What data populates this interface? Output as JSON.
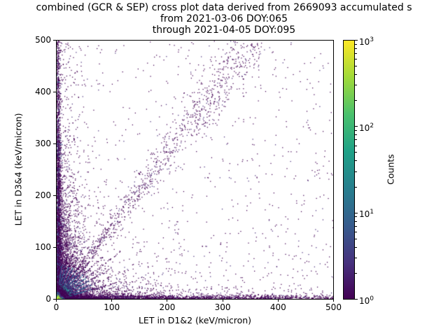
{
  "chart_data": {
    "type": "scatter",
    "title_lines": [
      "combined (GCR & SEP) cross plot data derived from 2669093 accumulated s",
      "from 2021-03-06 DOY:065",
      "through 2021-04-05 DOY:095"
    ],
    "xlabel": "LET in D1&2 (keV/micron)",
    "ylabel": "LET in D3&4 (keV/micron)",
    "xlim": [
      0,
      500
    ],
    "ylim": [
      0,
      500
    ],
    "xticks": [
      0,
      100,
      200,
      300,
      400,
      500
    ],
    "yticks": [
      0,
      100,
      200,
      300,
      400,
      500
    ],
    "grid": false,
    "description": "2D density cross plot of LET in detector pair D1&2 vs D3&4; very dense hot spot at the origin (counts up to ~10^3), bright teal rays fanning out from the origin at several slopes, a tight diagonal band rising from the origin to about (350,500), dense bands hugging both axes, a diffuse low-LET cloud below ~(70,300), and sparse single-count (dark purple) points scattered across the full range.",
    "colorbar": {
      "label": "Counts",
      "scale": "log",
      "tick_exponents": [
        0,
        1,
        2,
        3
      ],
      "gradient": [
        "#440154",
        "#46327e",
        "#365c8d",
        "#277f8e",
        "#1fa187",
        "#4ac16d",
        "#a0da39",
        "#fde725"
      ]
    },
    "point_color_single_count": "#440154",
    "seed": 1337,
    "components": [
      {
        "kind": "band_x",
        "n": 2600,
        "len": 500,
        "pow": 2.4,
        "thick": 4
      },
      {
        "kind": "band_y",
        "n": 2000,
        "len": 500,
        "pow": 2.2,
        "thick": 3
      },
      {
        "kind": "cloud",
        "n": 3000,
        "sx": 16,
        "sy": 75
      },
      {
        "kind": "cloud",
        "n": 1400,
        "sx": 75,
        "sy": 13
      },
      {
        "kind": "tall_left",
        "n": 320,
        "sx": 20,
        "ymax": 490
      },
      {
        "kind": "column",
        "n": 650,
        "thick": 4,
        "ymax": 320
      },
      {
        "kind": "uniform",
        "n": 900,
        "ybias": 1.7
      },
      {
        "kind": "diagonal",
        "n": 950,
        "slope": 1.42,
        "rmax": 620,
        "j0": 1.2,
        "jg": 0.035
      },
      {
        "kind": "rays",
        "slopes": [
          0.3,
          0.45,
          0.62,
          0.8,
          1.0,
          1.25,
          1.6,
          2.1,
          3.0,
          4.5,
          8.0
        ],
        "n_per": 240,
        "rscale": 34
      },
      {
        "kind": "origin_hotspot",
        "n": 5200,
        "sx": 5,
        "sy": 5
      },
      {
        "kind": "origin_core",
        "n": 130,
        "s": 1.5
      }
    ]
  }
}
